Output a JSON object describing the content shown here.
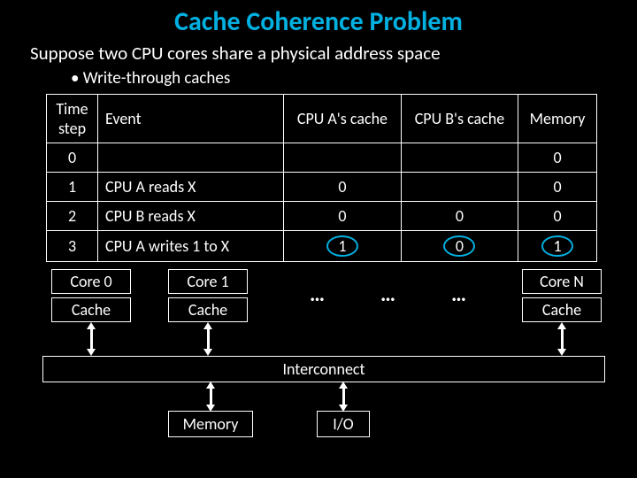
{
  "title": "Cache Coherence Problem",
  "subtitle": "Suppose two CPU cores share a physical address space",
  "bullet": "Write-through caches",
  "table": {
    "headers": {
      "time": "Time step",
      "event": "Event",
      "cpuA": "CPU A's cache",
      "cpuB": "CPU B's cache",
      "mem": "Memory"
    },
    "rows": [
      {
        "time": "0",
        "event": "",
        "cpuA": "",
        "cpuB": "",
        "mem": "0",
        "circled": false
      },
      {
        "time": "1",
        "event": "CPU A reads X",
        "cpuA": "0",
        "cpuB": "",
        "mem": "0",
        "circled": false
      },
      {
        "time": "2",
        "event": "CPU B reads X",
        "cpuA": "0",
        "cpuB": "0",
        "mem": "0",
        "circled": false
      },
      {
        "time": "3",
        "event": "CPU A writes 1 to X",
        "cpuA": "1",
        "cpuB": "0",
        "mem": "1",
        "circled": true
      }
    ]
  },
  "diagram": {
    "core0": "Core 0",
    "cache0": "Cache",
    "core1": "Core 1",
    "cache1": "Cache",
    "coreN": "Core N",
    "cacheN": "Cache",
    "interconnect": "Interconnect",
    "memory": "Memory",
    "io": "I/O",
    "dots": "…"
  },
  "colors": {
    "accent": "#00b0e0",
    "background": "#000000",
    "foreground": "#ffffff"
  }
}
